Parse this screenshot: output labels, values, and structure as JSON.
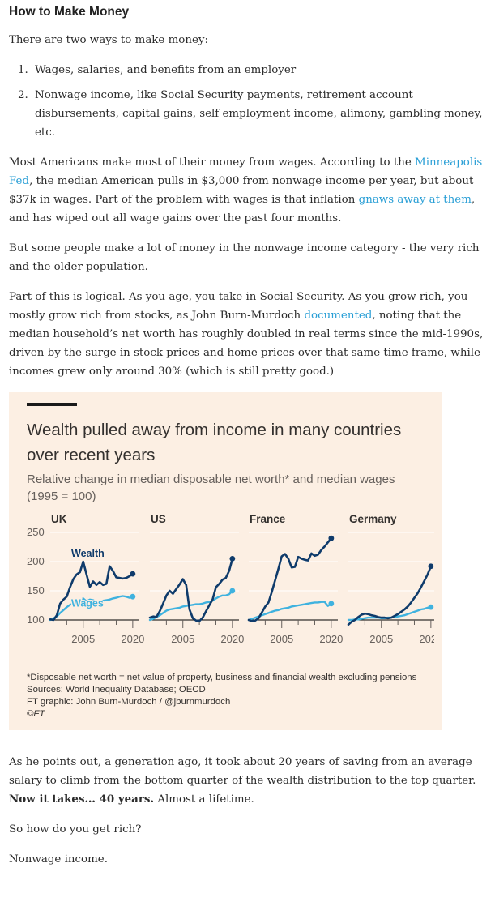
{
  "article": {
    "heading": "How to Make Money",
    "intro": "There are two ways to make money:",
    "list": [
      "Wages, salaries, and benefits from an employer",
      "Nonwage income, like Social Security payments, retirement account disbursements, capital gains, self employment income, alimony, gambling money, etc."
    ],
    "p1_a": "Most Americans make most of their money from wages. According to the ",
    "p1_link1": "Minneapolis Fed",
    "p1_b": ", the median American pulls in $3,000 from nonwage income per year, but about $37k in wages. Part of the problem with wages is that inflation ",
    "p1_link2": "gnaws away at them",
    "p1_c": ", and has wiped out all wage gains over the past four months.",
    "p2": "But some people make a lot of money in the nonwage income category - the very rich and the older population.",
    "p3_a": "Part of this is logical. As you age, you take in Social Security. As you grow rich, you mostly grow rich from stocks, as John Burn-Murdoch ",
    "p3_link": "documented",
    "p3_b": ", noting that the median household’s net worth has roughly doubled in real terms since the mid-1990s, driven by the surge in stock prices and home prices over that same time frame, while incomes grew only around 30% (which is still pretty good.)",
    "p4_a": "As he points out, a generation ago, it took about 20 years of saving from an average salary to climb from the bottom quarter of the wealth distribution to the top quarter. ",
    "p4_bold": "Now it takes… 40 years.",
    "p4_b": " Almost a lifetime.",
    "p5": "So how do you get rich?",
    "p6": "Nonwage income."
  },
  "chart_data": {
    "type": "line",
    "title": "Wealth pulled away from income in many countries over recent years",
    "subtitle": "Relative change in median disposable net worth* and median wages (1995 = 100)",
    "ylim": [
      100,
      250
    ],
    "yticks": [
      100,
      150,
      200,
      250
    ],
    "xlim": [
      1995,
      2022
    ],
    "xticks_labeled": [
      2005,
      2020
    ],
    "series_labels": {
      "wealth": "Wealth",
      "wages": "Wages"
    },
    "colors": {
      "wealth": "#0f3b6b",
      "wages": "#3fb2df",
      "grid": "#ffffff",
      "background": "#fcefe3"
    },
    "panels": [
      {
        "name": "UK",
        "wealth": {
          "x": [
            1995,
            1996,
            1997,
            1998,
            1999,
            2000,
            2001,
            2002,
            2003,
            2004,
            2005,
            2006,
            2007,
            2008,
            2009,
            2010,
            2011,
            2012,
            2013,
            2014,
            2015,
            2016,
            2017,
            2018,
            2019,
            2020
          ],
          "y": [
            101,
            100,
            108,
            128,
            135,
            140,
            156,
            170,
            178,
            182,
            200,
            178,
            157,
            166,
            160,
            165,
            160,
            162,
            192,
            184,
            173,
            172,
            171,
            172,
            175,
            179
          ]
        },
        "wages": {
          "x": [
            1995,
            1996,
            1997,
            1998,
            1999,
            2000,
            2001,
            2002,
            2003,
            2004,
            2005,
            2006,
            2007,
            2008,
            2009,
            2010,
            2011,
            2012,
            2013,
            2014,
            2015,
            2016,
            2017,
            2018,
            2019,
            2020
          ],
          "y": [
            100,
            103,
            106,
            112,
            117,
            122,
            126,
            128,
            130,
            133,
            137,
            132,
            135,
            134,
            131,
            132,
            133,
            134,
            135,
            137,
            138,
            140,
            141,
            140,
            138,
            140
          ]
        }
      },
      {
        "name": "US",
        "wealth": {
          "x": [
            1995,
            1996,
            1997,
            1998,
            1999,
            2000,
            2001,
            2002,
            2003,
            2004,
            2005,
            2006,
            2007,
            2008,
            2009,
            2010,
            2011,
            2012,
            2013,
            2014,
            2015,
            2016,
            2017,
            2018,
            2019,
            2020
          ],
          "y": [
            104,
            106,
            105,
            115,
            128,
            142,
            150,
            145,
            153,
            161,
            170,
            160,
            118,
            103,
            99,
            98,
            104,
            115,
            125,
            135,
            156,
            162,
            169,
            172,
            184,
            205
          ]
        },
        "wages": {
          "x": [
            1995,
            1996,
            1997,
            1998,
            1999,
            2000,
            2001,
            2002,
            2003,
            2004,
            2005,
            2006,
            2007,
            2008,
            2009,
            2010,
            2011,
            2012,
            2013,
            2014,
            2015,
            2016,
            2017,
            2018,
            2019,
            2020
          ],
          "y": [
            100,
            102,
            105,
            108,
            112,
            116,
            118,
            119,
            120,
            121,
            123,
            124,
            125,
            126,
            127,
            127,
            128,
            130,
            131,
            133,
            137,
            140,
            142,
            142,
            144,
            150
          ]
        }
      },
      {
        "name": "France",
        "wealth": {
          "x": [
            1995,
            1996,
            1997,
            1998,
            1999,
            2000,
            2001,
            2002,
            2003,
            2004,
            2005,
            2006,
            2007,
            2008,
            2009,
            2010,
            2011,
            2012,
            2013,
            2014,
            2015,
            2016,
            2017,
            2018,
            2019,
            2020
          ],
          "y": [
            100,
            98,
            99,
            103,
            113,
            123,
            130,
            148,
            168,
            188,
            209,
            213,
            205,
            190,
            191,
            208,
            205,
            203,
            202,
            214,
            210,
            212,
            220,
            226,
            233,
            240
          ]
        },
        "wages": {
          "x": [
            1995,
            1996,
            1997,
            1998,
            1999,
            2000,
            2001,
            2002,
            2003,
            2004,
            2005,
            2006,
            2007,
            2008,
            2009,
            2010,
            2011,
            2012,
            2013,
            2014,
            2015,
            2016,
            2017,
            2018,
            2019,
            2020
          ],
          "y": [
            100,
            102,
            104,
            106,
            108,
            110,
            112,
            114,
            116,
            117,
            119,
            120,
            121,
            123,
            124,
            125,
            126,
            127,
            128,
            129,
            130,
            130,
            131,
            131,
            124,
            128
          ]
        }
      },
      {
        "name": "Germany",
        "wealth": {
          "x": [
            1995,
            1996,
            1997,
            1998,
            1999,
            2000,
            2001,
            2002,
            2003,
            2004,
            2005,
            2006,
            2007,
            2008,
            2009,
            2010,
            2011,
            2012,
            2013,
            2014,
            2015,
            2016,
            2017,
            2018,
            2019,
            2020
          ],
          "y": [
            92,
            97,
            100,
            105,
            109,
            111,
            110,
            108,
            107,
            105,
            104,
            104,
            103,
            104,
            107,
            110,
            114,
            118,
            123,
            130,
            138,
            146,
            156,
            167,
            178,
            192
          ]
        },
        "wages": {
          "x": [
            1995,
            1996,
            1997,
            1998,
            1999,
            2000,
            2001,
            2002,
            2003,
            2004,
            2005,
            2006,
            2007,
            2008,
            2009,
            2010,
            2011,
            2012,
            2013,
            2014,
            2015,
            2016,
            2017,
            2018,
            2019,
            2020
          ],
          "y": [
            100,
            100,
            101,
            101,
            102,
            103,
            104,
            104,
            104,
            104,
            103,
            103,
            104,
            104,
            105,
            106,
            107,
            108,
            110,
            112,
            114,
            116,
            118,
            119,
            121,
            122
          ]
        }
      }
    ],
    "notes": [
      "*Disposable net worth = net value of property, business and financial wealth excluding pensions",
      "Sources: World Inequality Database; OECD",
      "FT graphic: John Burn-Murdoch / @jburnmurdoch",
      "©FT"
    ]
  }
}
